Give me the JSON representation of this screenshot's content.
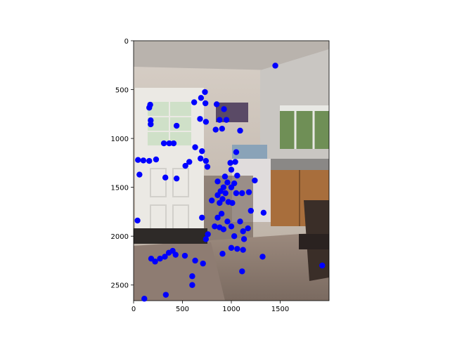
{
  "chart_data": {
    "type": "scatter",
    "title": "",
    "xlabel": "",
    "ylabel": "",
    "xlim": [
      0,
      2000
    ],
    "ylim": [
      2660,
      0
    ],
    "y_inverted": true,
    "background": "photograph of a kitchen interior with a white door with window panes, a framed picture on the wall, a window with trees outside, a countertop with kitchen items, a chair and a patterned rug on a tiled floor",
    "xticks": [
      0,
      500,
      1000,
      1500
    ],
    "yticks": [
      0,
      500,
      1000,
      1500,
      2000,
      2500
    ],
    "point_color": "#0000ff",
    "series": [
      {
        "values": [
          [
            1450,
            255
          ],
          [
            730,
            525
          ],
          [
            690,
            585
          ],
          [
            620,
            630
          ],
          [
            735,
            640
          ],
          [
            850,
            650
          ],
          [
            170,
            655
          ],
          [
            160,
            685
          ],
          [
            925,
            700
          ],
          [
            175,
            815
          ],
          [
            680,
            800
          ],
          [
            880,
            810
          ],
          [
            950,
            810
          ],
          [
            740,
            830
          ],
          [
            175,
            855
          ],
          [
            440,
            870
          ],
          [
            840,
            910
          ],
          [
            905,
            900
          ],
          [
            1090,
            920
          ],
          [
            310,
            1050
          ],
          [
            365,
            1050
          ],
          [
            410,
            1050
          ],
          [
            630,
            1090
          ],
          [
            700,
            1130
          ],
          [
            1050,
            1140
          ],
          [
            45,
            1220
          ],
          [
            100,
            1225
          ],
          [
            160,
            1230
          ],
          [
            230,
            1215
          ],
          [
            570,
            1240
          ],
          [
            685,
            1205
          ],
          [
            740,
            1230
          ],
          [
            1040,
            1240
          ],
          [
            990,
            1250
          ],
          [
            530,
            1280
          ],
          [
            755,
            1290
          ],
          [
            1000,
            1320
          ],
          [
            60,
            1370
          ],
          [
            325,
            1400
          ],
          [
            440,
            1410
          ],
          [
            935,
            1390
          ],
          [
            1060,
            1380
          ],
          [
            860,
            1440
          ],
          [
            960,
            1450
          ],
          [
            1030,
            1460
          ],
          [
            1240,
            1430
          ],
          [
            920,
            1500
          ],
          [
            1000,
            1500
          ],
          [
            890,
            1540
          ],
          [
            940,
            1560
          ],
          [
            1050,
            1560
          ],
          [
            1110,
            1560
          ],
          [
            1180,
            1550
          ],
          [
            860,
            1580
          ],
          [
            910,
            1620
          ],
          [
            800,
            1635
          ],
          [
            880,
            1660
          ],
          [
            970,
            1650
          ],
          [
            1010,
            1660
          ],
          [
            1200,
            1740
          ],
          [
            1330,
            1760
          ],
          [
            900,
            1770
          ],
          [
            700,
            1810
          ],
          [
            860,
            1810
          ],
          [
            960,
            1850
          ],
          [
            1090,
            1850
          ],
          [
            40,
            1840
          ],
          [
            830,
            1900
          ],
          [
            880,
            1910
          ],
          [
            920,
            1930
          ],
          [
            1000,
            1900
          ],
          [
            1170,
            1920
          ],
          [
            1120,
            1950
          ],
          [
            760,
            1980
          ],
          [
            1030,
            2000
          ],
          [
            740,
            2030
          ],
          [
            1130,
            2030
          ],
          [
            1060,
            2130
          ],
          [
            1120,
            2140
          ],
          [
            1000,
            2120
          ],
          [
            400,
            2150
          ],
          [
            910,
            2180
          ],
          [
            360,
            2170
          ],
          [
            525,
            2200
          ],
          [
            320,
            2210
          ],
          [
            430,
            2190
          ],
          [
            1320,
            2210
          ],
          [
            270,
            2230
          ],
          [
            180,
            2230
          ],
          [
            220,
            2260
          ],
          [
            630,
            2250
          ],
          [
            710,
            2280
          ],
          [
            1930,
            2300
          ],
          [
            1110,
            2360
          ],
          [
            600,
            2410
          ],
          [
            600,
            2500
          ],
          [
            330,
            2600
          ],
          [
            110,
            2640
          ]
        ]
      }
    ]
  }
}
